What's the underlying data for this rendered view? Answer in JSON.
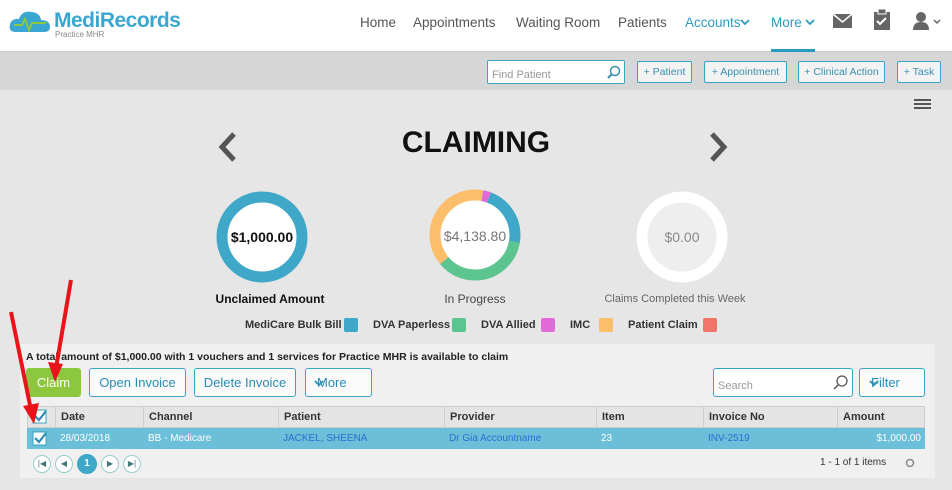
{
  "header": {
    "logo": "MediRecords",
    "logo_sub": "Practice MHR",
    "nav": [
      "Home",
      "Appointments",
      "Waiting Room",
      "Patients",
      "Accounts",
      "More"
    ]
  },
  "toolbar": {
    "search_placeholder": "Find Patient",
    "buttons": [
      "+ Patient",
      "+ Appointment",
      "+ Clinical Action",
      "+ Task"
    ]
  },
  "page": {
    "title": "CLAIMING"
  },
  "summaries": [
    {
      "value": "$1,000.00",
      "label": "Unclaimed Amount"
    },
    {
      "value": "$4,138.80",
      "label": "In Progress"
    },
    {
      "value": "$0.00",
      "label": "Claims Completed this Week"
    }
  ],
  "legend": [
    "MediCare Bulk Bill",
    "DVA Paperless",
    "DVA Allied",
    "IMC",
    "Patient Claim"
  ],
  "claim_panel": {
    "message": "A total amount of $1,000.00 with 1 vouchers and 1 services for Practice MHR is available to claim",
    "buttons": [
      "Claim",
      "Open Invoice",
      "Delete Invoice",
      "More"
    ],
    "search_placeholder": "Search",
    "filter": "Filter",
    "table": {
      "columns": [
        "Date",
        "Channel",
        "Patient",
        "Provider",
        "Item",
        "Invoice No",
        "Amount"
      ],
      "rows": [
        [
          "28/03/2018",
          "BB - Medicare",
          "JACKEL, SHEENA",
          "Dr Gia Accountname",
          "23",
          "INV-2519",
          "$1,000.00"
        ]
      ]
    },
    "pager": {
      "page": "1",
      "summary": "1 - 1 of 1 items"
    }
  }
}
